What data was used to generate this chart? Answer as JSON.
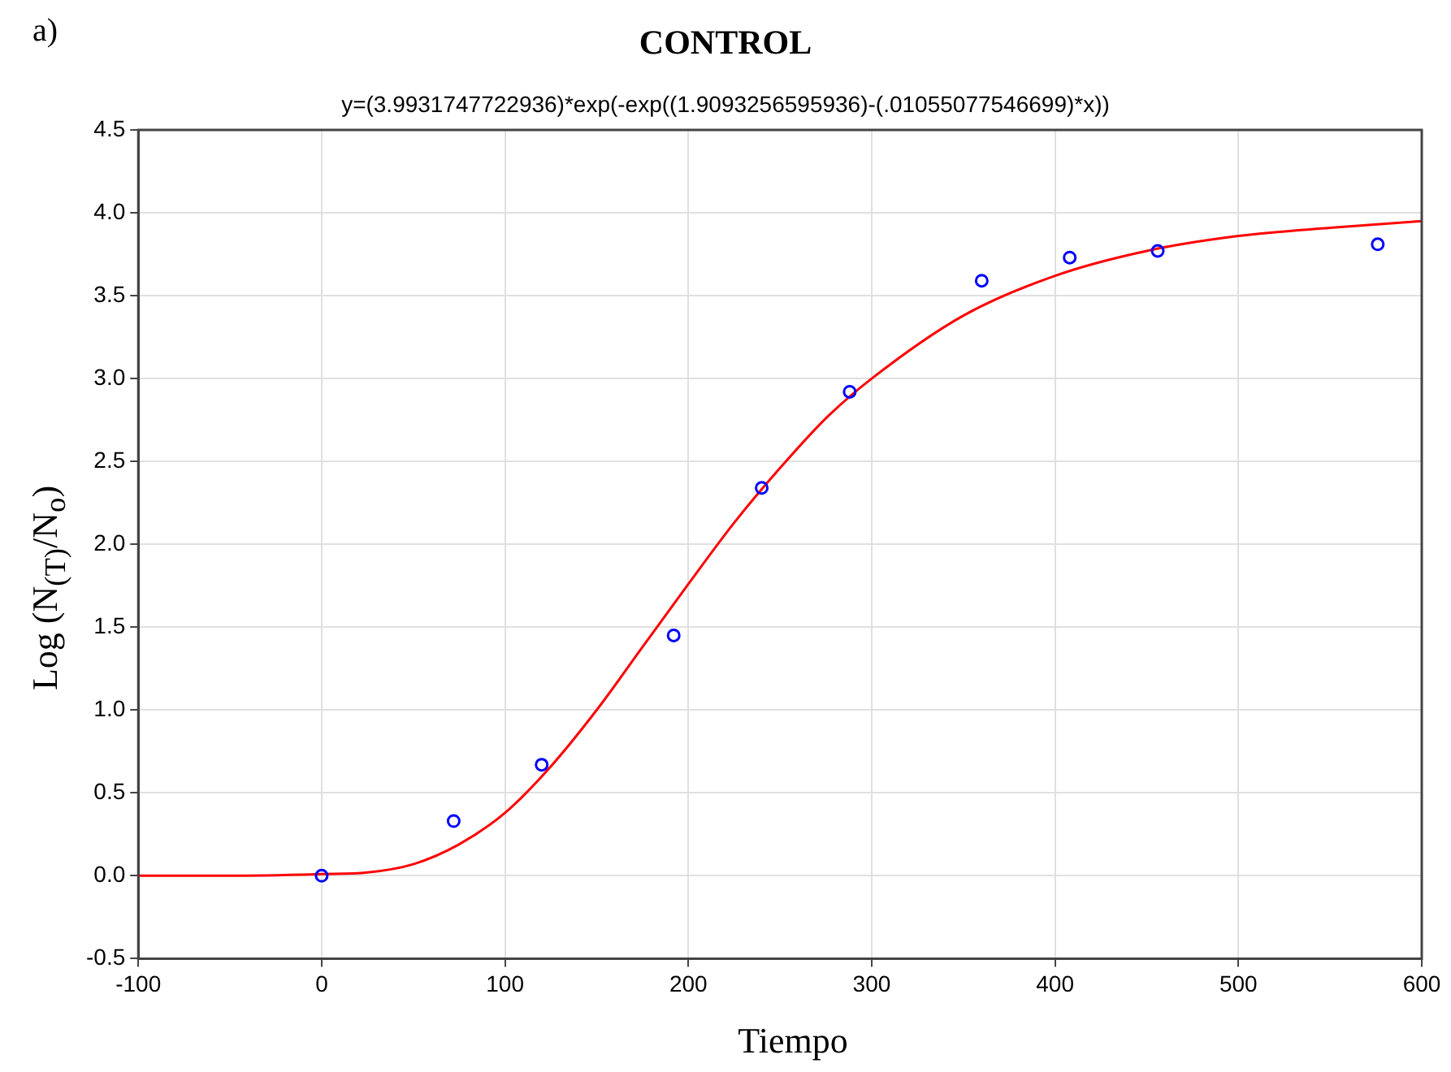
{
  "chart_data": {
    "type": "scatter",
    "title": "CONTROL",
    "subtitle": "y=(3.9931747722936)*exp(-exp((1.9093256595936)-(.01055077546699)*x))",
    "xlabel": "Tiempo",
    "ylabel": "Log (N$_{(T)}$/N$_{o}$)",
    "annotations": [
      "a)"
    ],
    "xlim": [
      -100,
      600
    ],
    "xticks": [
      -100,
      0,
      100,
      200,
      300,
      400,
      500,
      600
    ],
    "ylim": [
      -0.5,
      4.5
    ],
    "yticks": [
      -0.5,
      {
        "value": 0,
        "label": "0.0"
      },
      0.5,
      {
        "value": 1,
        "label": "1.0"
      },
      1.5,
      {
        "value": 2,
        "label": "2.0"
      },
      2.5,
      {
        "value": 3,
        "label": "3.0"
      },
      3.5,
      {
        "value": 4,
        "label": "4.0"
      },
      4.5
    ],
    "grid": true,
    "legend": false,
    "series": [
      {
        "color": "#0000ff",
        "marker": "circle",
        "x": [
          0,
          72,
          120,
          192,
          240,
          288,
          360,
          408,
          456,
          576
        ],
        "values": [
          0.0,
          0.33,
          0.67,
          1.45,
          2.34,
          2.92,
          3.59,
          3.73,
          3.77,
          3.81
        ]
      },
      {
        "type": "line",
        "color": "#ff0000",
        "marker": "none",
        "line_style": "solid",
        "x": [
          -100,
          -50,
          0,
          25,
          50,
          75,
          100,
          125,
          150,
          175,
          200,
          225,
          250,
          275,
          300,
          350,
          400,
          450,
          500,
          550,
          600
        ],
        "values": [
          0.0,
          0.0,
          0.01,
          0.02,
          0.07,
          0.19,
          0.38,
          0.66,
          1.0,
          1.38,
          1.76,
          2.13,
          2.46,
          2.76,
          3.0,
          3.38,
          3.62,
          3.77,
          3.86,
          3.91,
          3.95
        ]
      }
    ]
  }
}
